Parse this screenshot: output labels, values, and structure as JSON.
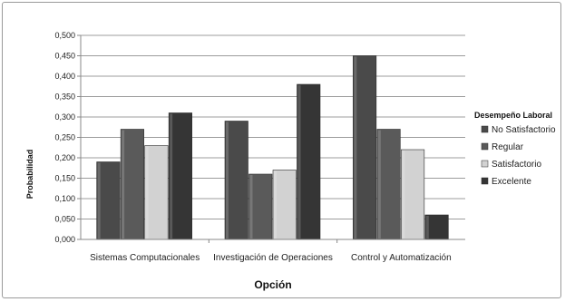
{
  "chart_data": {
    "type": "bar",
    "title": "",
    "xlabel": "Opción",
    "ylabel": "Probabilidad",
    "categories": [
      "Sistemas Computacionales",
      "Investigación de Operaciones",
      "Control y Automatización"
    ],
    "series": [
      {
        "name": "No Satisfactorio",
        "values": [
          0.19,
          0.29,
          0.45
        ],
        "color": "#4a4a4a"
      },
      {
        "name": "Regular",
        "values": [
          0.27,
          0.16,
          0.27
        ],
        "color": "#5a5a5a"
      },
      {
        "name": "Satisfactorio",
        "values": [
          0.23,
          0.17,
          0.22
        ],
        "color": "#d2d2d2"
      },
      {
        "name": "Excelente",
        "values": [
          0.31,
          0.38,
          0.06
        ],
        "color": "#353535"
      }
    ],
    "ylim": [
      0,
      0.5
    ],
    "yticks": [
      "0,000",
      "0,050",
      "0,100",
      "0,150",
      "0,200",
      "0,250",
      "0,300",
      "0,350",
      "0,400",
      "0,450",
      "0,500"
    ],
    "grid": true,
    "legend": {
      "title": "Desempeño Laboral",
      "placement": "right"
    }
  }
}
